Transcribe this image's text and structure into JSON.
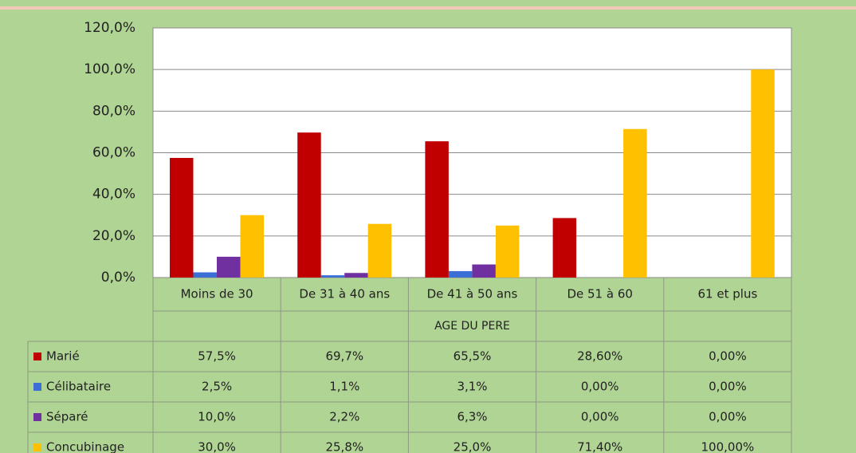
{
  "chart_data": {
    "type": "bar",
    "x_label": "AGE DU PERE",
    "categories": [
      "Moins de 30",
      "De 31 à 40 ans",
      "De 41 à 50 ans",
      "De 51 à 60",
      "61 et plus"
    ],
    "series": [
      {
        "name": "Marié",
        "color": "#c00000",
        "values": [
          57.5,
          69.7,
          65.5,
          28.6,
          0
        ],
        "value_labels": [
          "57,5%",
          "69,7%",
          "65,5%",
          "28,60%",
          "0,00%"
        ]
      },
      {
        "name": "Célibataire",
        "color": "#3c6fd6",
        "values": [
          2.5,
          1.1,
          3.1,
          0,
          0
        ],
        "value_labels": [
          "2,5%",
          "1,1%",
          "3,1%",
          "0,00%",
          "0,00%"
        ]
      },
      {
        "name": "Séparé",
        "color": "#7030a0",
        "values": [
          10,
          2.2,
          6.3,
          0,
          0
        ],
        "value_labels": [
          "10,0%",
          "2,2%",
          "6,3%",
          "0,00%",
          "0,00%"
        ]
      },
      {
        "name": "Concubinage",
        "color": "#ffc000",
        "values": [
          30,
          25.8,
          25,
          71.4,
          100
        ],
        "value_labels": [
          "30,0%",
          "25,8%",
          "25,0%",
          "71,40%",
          "100,00%"
        ]
      }
    ],
    "ylim": [
      0,
      120
    ],
    "yticks": [
      {
        "value": 0,
        "label": "0,0%"
      },
      {
        "value": 20,
        "label": "20,0%"
      },
      {
        "value": 40,
        "label": "40,0%"
      },
      {
        "value": 60,
        "label": "60,0%"
      },
      {
        "value": 80,
        "label": "80,0%"
      },
      {
        "value": 100,
        "label": "100,0%"
      },
      {
        "value": 120,
        "label": "120,0%"
      }
    ],
    "grid": true
  }
}
